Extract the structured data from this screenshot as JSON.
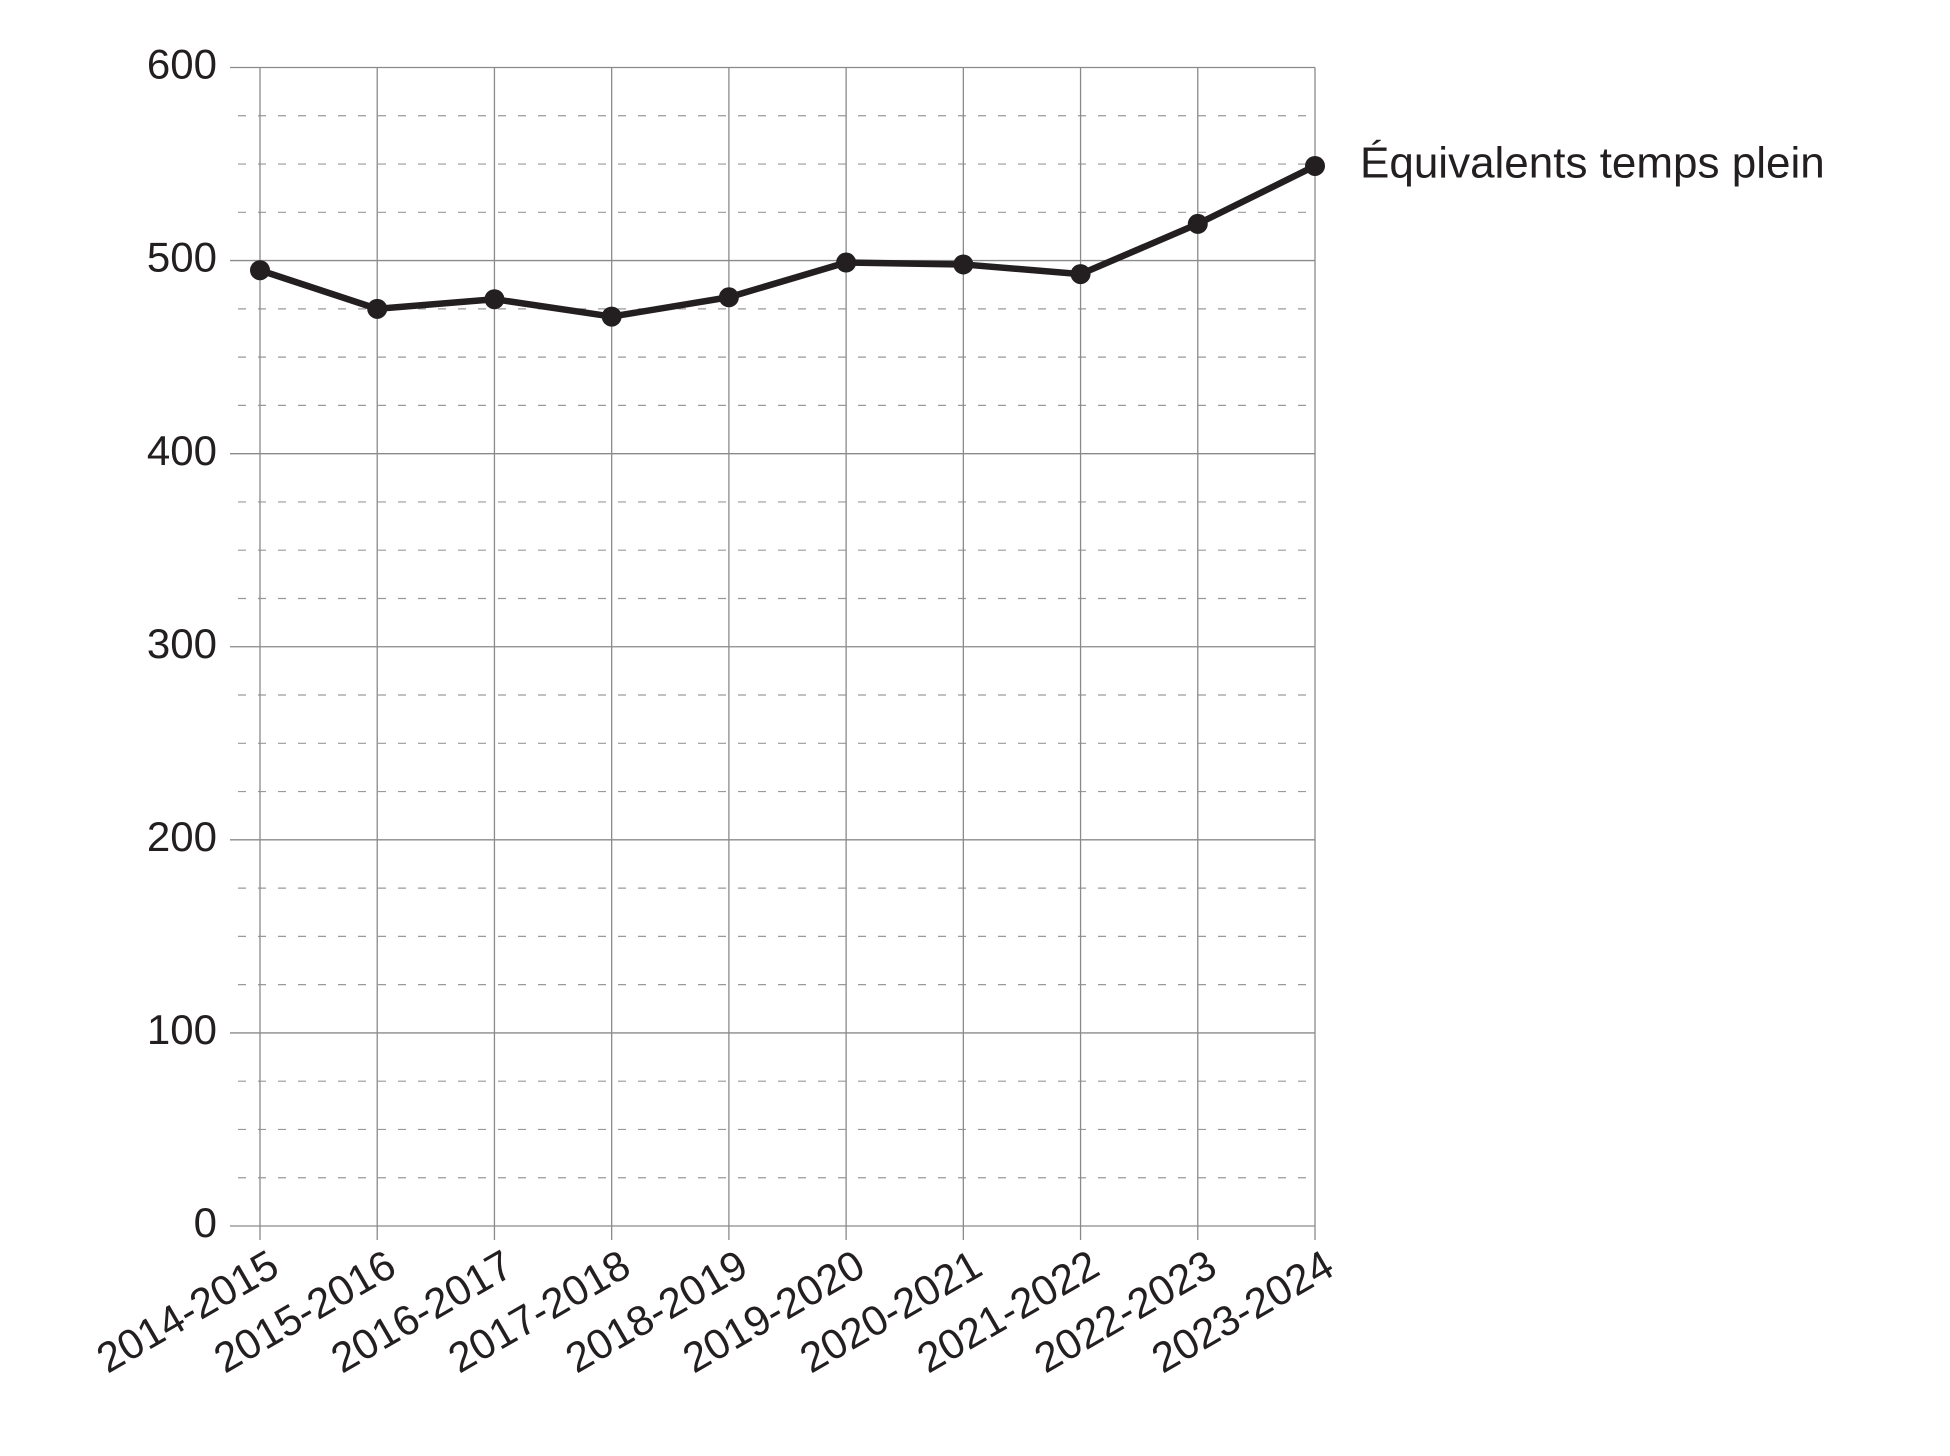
{
  "chart_data": {
    "type": "line",
    "categories": [
      "2014-2015",
      "2015-2016",
      "2016-2017",
      "2017-2018",
      "2018-2019",
      "2019-2020",
      "2020-2021",
      "2021-2022",
      "2022-2023",
      "2023-2024"
    ],
    "series": [
      {
        "name": "Équivalents temps plein",
        "color": "#231f20",
        "values": [
          495,
          475,
          480,
          471,
          481,
          499,
          498,
          493,
          519,
          549
        ]
      }
    ],
    "ylim": [
      0,
      600
    ],
    "yticks": [
      0,
      100,
      200,
      300,
      400,
      500,
      600
    ],
    "grid": true,
    "minor_grid": true
  }
}
